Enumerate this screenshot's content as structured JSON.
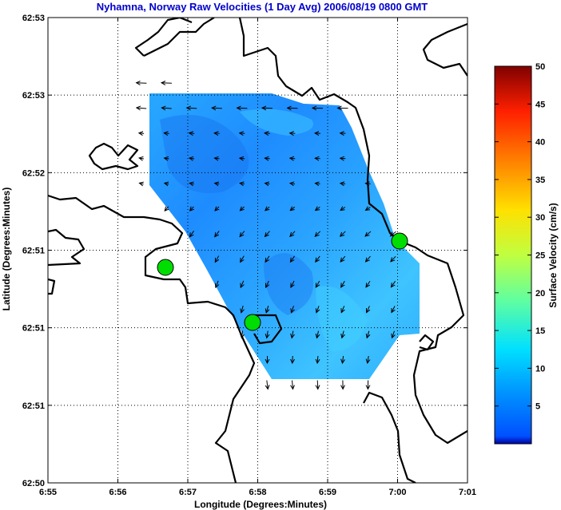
{
  "chart_data": {
    "type": "heatmap",
    "title": "Nyhamna, Norway Raw Velocities (1 Day Avg) 2006/08/19 0800 GMT",
    "xlabel": "Longitude (Degrees:Minutes)",
    "ylabel": "Latitude (Degrees:Minutes)",
    "x_ticks": [
      "6:55",
      "6:56",
      "6:57",
      "6:58",
      "6:59",
      "7:00",
      "7:01"
    ],
    "y_ticks": [
      "62:50",
      "62:51",
      "62:51",
      "62:51",
      "62:52",
      "62:53",
      "62:53"
    ],
    "grid": true,
    "colorbar": {
      "label": "Surface Velocity (cm/s)",
      "min": 0,
      "max": 50,
      "ticks": [
        "5",
        "10",
        "15",
        "20",
        "25",
        "30",
        "35",
        "40",
        "45",
        "50"
      ],
      "colormap": "jet"
    },
    "field_typical_speed_range_cm_s": [
      3,
      12
    ],
    "site_color": "#00dd00",
    "land_outline_color": "#000000"
  }
}
